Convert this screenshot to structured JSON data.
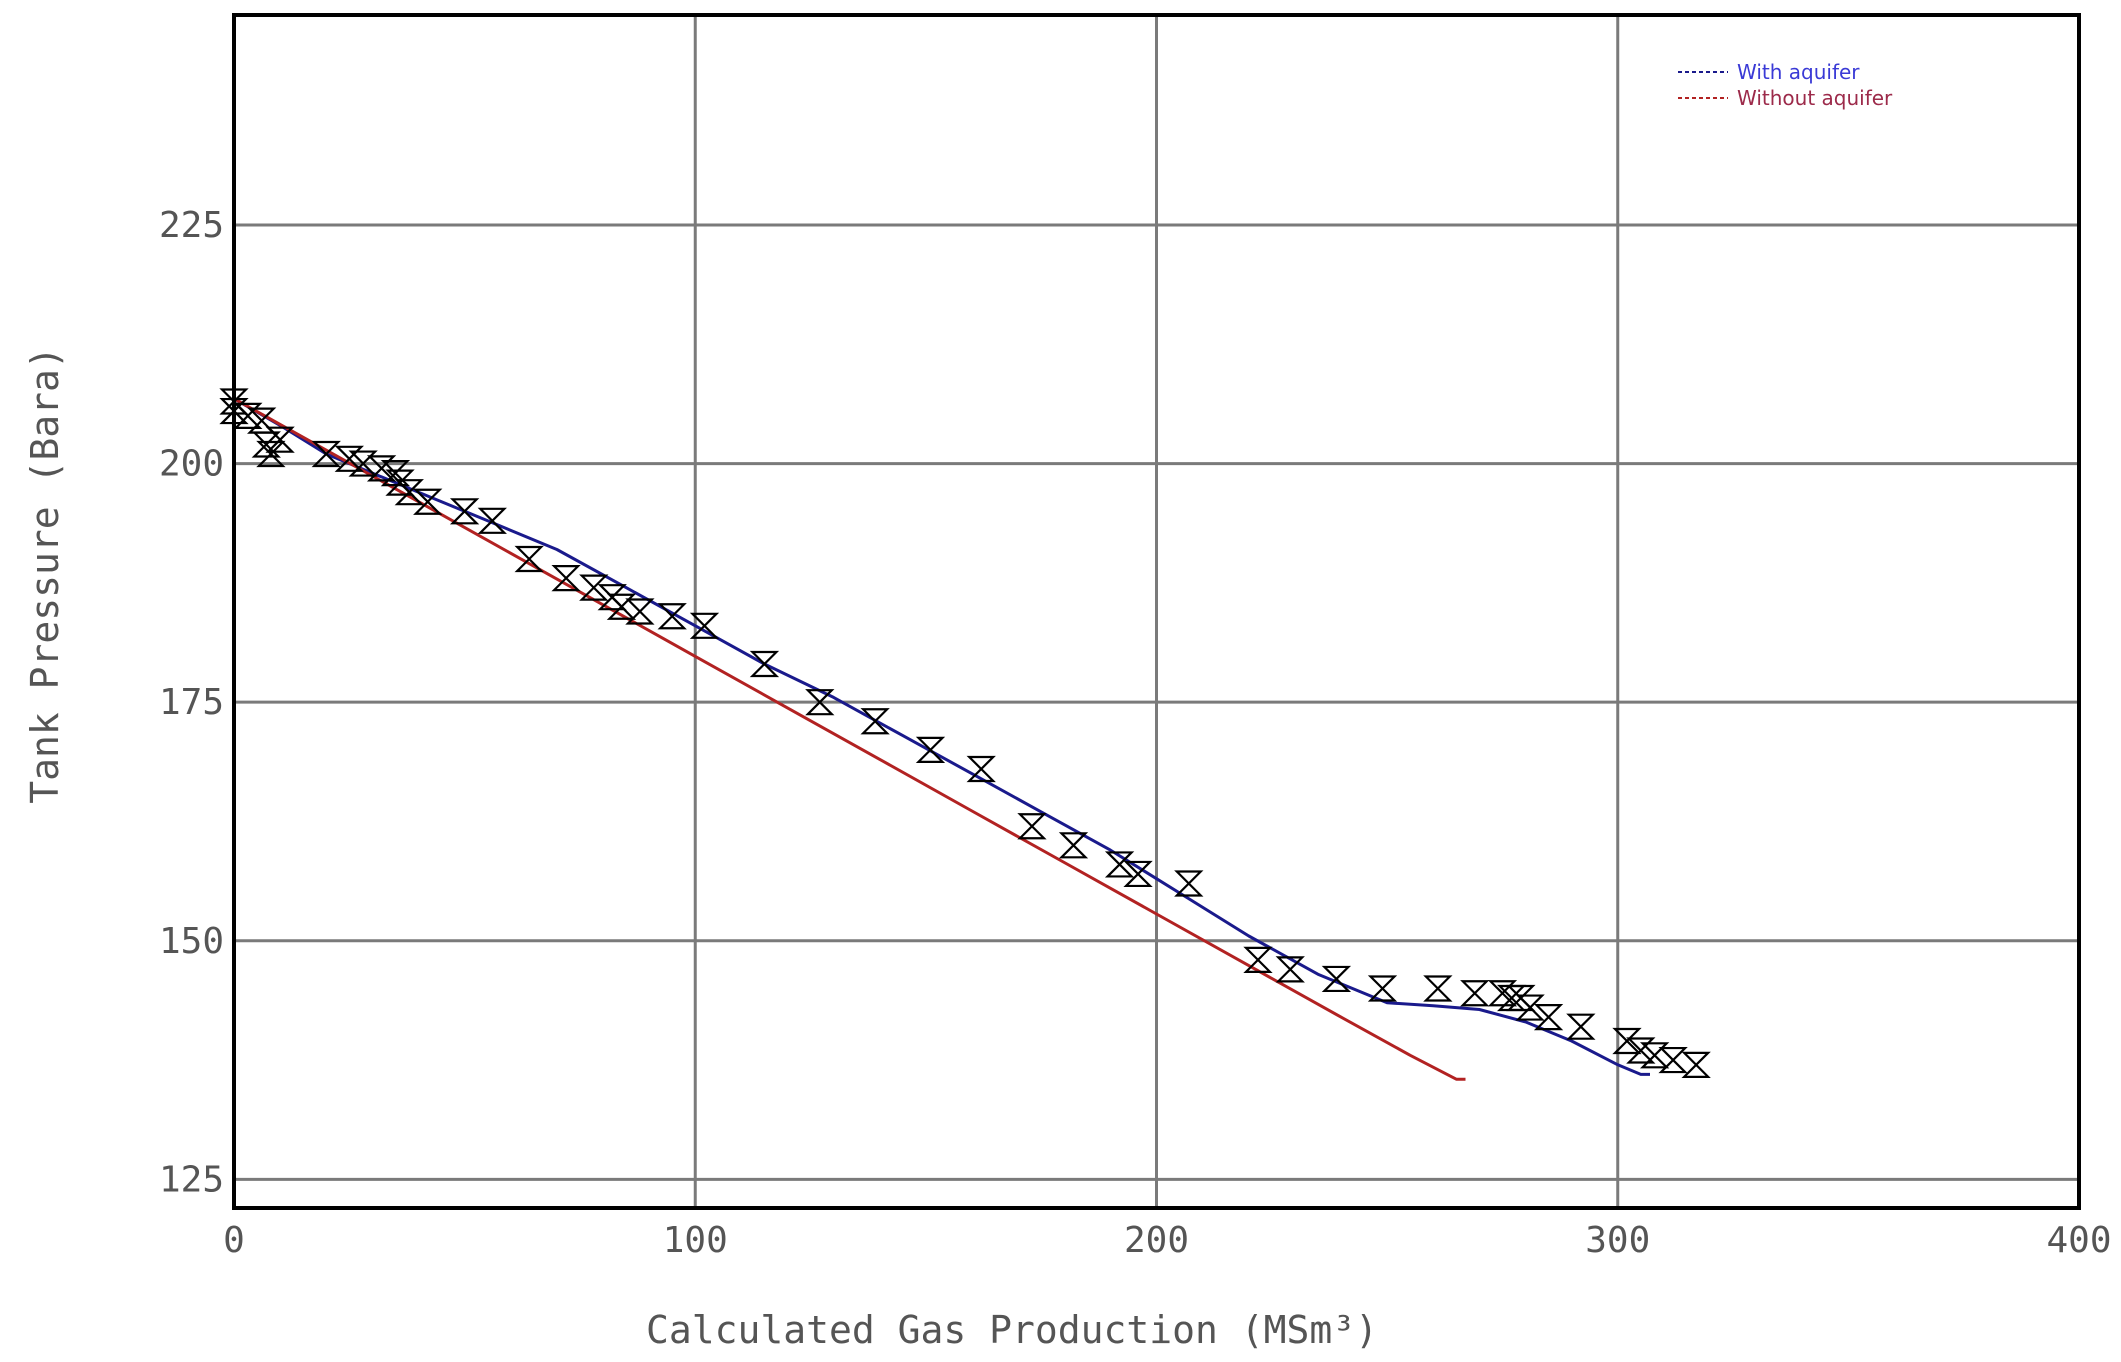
{
  "chart_data": {
    "type": "scatter",
    "title": "",
    "xlabel": "Calculated Gas Production (MSm³)",
    "ylabel": "Tank Pressure (Bara)",
    "xlim": [
      0,
      400
    ],
    "ylim": [
      122,
      247
    ],
    "x_ticks": [
      "0",
      "100",
      "200",
      "300",
      "400"
    ],
    "y_ticks": [
      "125",
      "150",
      "175",
      "200",
      "225"
    ],
    "grid": true,
    "legend_position": "top-right",
    "series": [
      {
        "name": "With aquifer",
        "kind": "line",
        "color": "#1a1a8c",
        "x": [
          0,
          10,
          20,
          30,
          40,
          55,
          70,
          85,
          100,
          115,
          130,
          145,
          160,
          175,
          190,
          205,
          220,
          235,
          250,
          260,
          270,
          280,
          290,
          300,
          305,
          307
        ],
        "y": [
          206.8,
          204,
          201,
          199,
          197,
          194,
          191,
          187,
          183,
          179,
          175.5,
          171.5,
          167.5,
          163.5,
          159.5,
          155,
          150.5,
          146.5,
          143.5,
          143.2,
          142.8,
          141.5,
          139.5,
          137,
          136,
          136
        ]
      },
      {
        "name": "Without aquifer",
        "kind": "line",
        "color": "#b22222",
        "x": [
          0,
          20,
          40,
          60,
          80,
          100,
          120,
          140,
          160,
          180,
          200,
          220,
          240,
          255,
          265,
          267
        ],
        "y": [
          206.8,
          201.4,
          196,
          190.6,
          185.2,
          179.8,
          174.4,
          169,
          163.6,
          158.2,
          152.8,
          147.4,
          142,
          138,
          135.5,
          135.5
        ]
      },
      {
        "name": "",
        "kind": "markers",
        "color": "#000000",
        "x": [
          0,
          0,
          3,
          6,
          7,
          8,
          10,
          20,
          25,
          28,
          32,
          35,
          36,
          38,
          42,
          50,
          56,
          64,
          72,
          78,
          82,
          84,
          88,
          95,
          102,
          115,
          127,
          139,
          151,
          162,
          173,
          182,
          192,
          196,
          207,
          222,
          229,
          239,
          249,
          261,
          269,
          275,
          277,
          279,
          281,
          285,
          292,
          302,
          305,
          308,
          312,
          317
        ],
        "y": [
          206.5,
          205.5,
          205,
          204.5,
          202,
          201,
          202.5,
          201,
          200.5,
          200,
          199.5,
          199,
          198,
          197,
          196,
          195,
          194,
          190,
          188,
          187,
          186,
          185,
          184.5,
          184,
          183,
          179,
          175,
          173,
          170,
          168,
          162,
          160,
          158,
          157,
          156,
          148,
          147,
          146,
          145,
          145,
          144.5,
          144.5,
          144,
          144,
          143,
          142,
          141,
          139.5,
          138.5,
          138,
          137.5,
          137
        ]
      }
    ]
  }
}
